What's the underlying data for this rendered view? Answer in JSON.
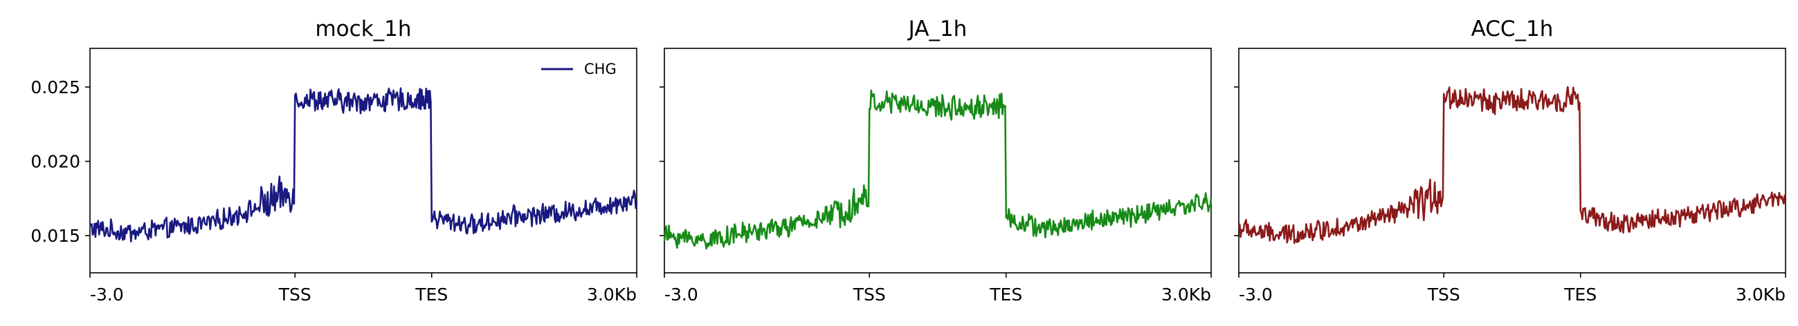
{
  "chart_data": [
    {
      "type": "line",
      "title": "mock_1h",
      "color": "#191980",
      "x_tick_labels": [
        "-3.0",
        "TSS",
        "TES",
        "3.0Kb"
      ],
      "y_ticks": [
        0.015,
        0.02,
        0.025
      ],
      "y_tick_labels": [
        "0.015",
        "0.020",
        "0.025"
      ],
      "ylim": [
        0.0125,
        0.0276
      ],
      "legend": {
        "label": "CHG",
        "position": "top-right"
      },
      "profile": {
        "upstream": [
          0.0155,
          0.0152,
          0.0155,
          0.0159,
          0.0168,
          0.018
        ],
        "body": [
          0.0242,
          0.0241,
          0.024,
          0.0241,
          0.0241,
          0.0242
        ],
        "downstream": [
          0.0162,
          0.0157,
          0.0163,
          0.0165,
          0.0169,
          0.0175
        ]
      }
    },
    {
      "type": "line",
      "title": "JA_1h",
      "color": "#178a17",
      "x_tick_labels": [
        "-3.0",
        "TSS",
        "TES",
        "3.0Kb"
      ],
      "y_ticks": [
        0.015,
        0.02,
        0.025
      ],
      "y_tick_labels": [
        "",
        "",
        ""
      ],
      "ylim": [
        0.0125,
        0.0276
      ],
      "legend": null,
      "profile": {
        "upstream": [
          0.015,
          0.0147,
          0.0152,
          0.0156,
          0.0163,
          0.0176
        ],
        "body": [
          0.024,
          0.0239,
          0.0237,
          0.0236,
          0.0237,
          0.0238
        ],
        "downstream": [
          0.0162,
          0.0154,
          0.016,
          0.0163,
          0.0168,
          0.0173
        ]
      }
    },
    {
      "type": "line",
      "title": "ACC_1h",
      "color": "#8b1a1a",
      "x_tick_labels": [
        "-3.0",
        "TSS",
        "TES",
        "3.0Kb"
      ],
      "y_ticks": [
        0.015,
        0.02,
        0.025
      ],
      "y_tick_labels": [
        "",
        "",
        ""
      ],
      "ylim": [
        0.0125,
        0.0276
      ],
      "legend": null,
      "profile": {
        "upstream": [
          0.0155,
          0.015,
          0.0154,
          0.0158,
          0.0166,
          0.018
        ],
        "body": [
          0.0243,
          0.0242,
          0.024,
          0.024,
          0.0241,
          0.0243
        ],
        "downstream": [
          0.0164,
          0.0157,
          0.0162,
          0.0165,
          0.017,
          0.0177
        ]
      }
    }
  ]
}
